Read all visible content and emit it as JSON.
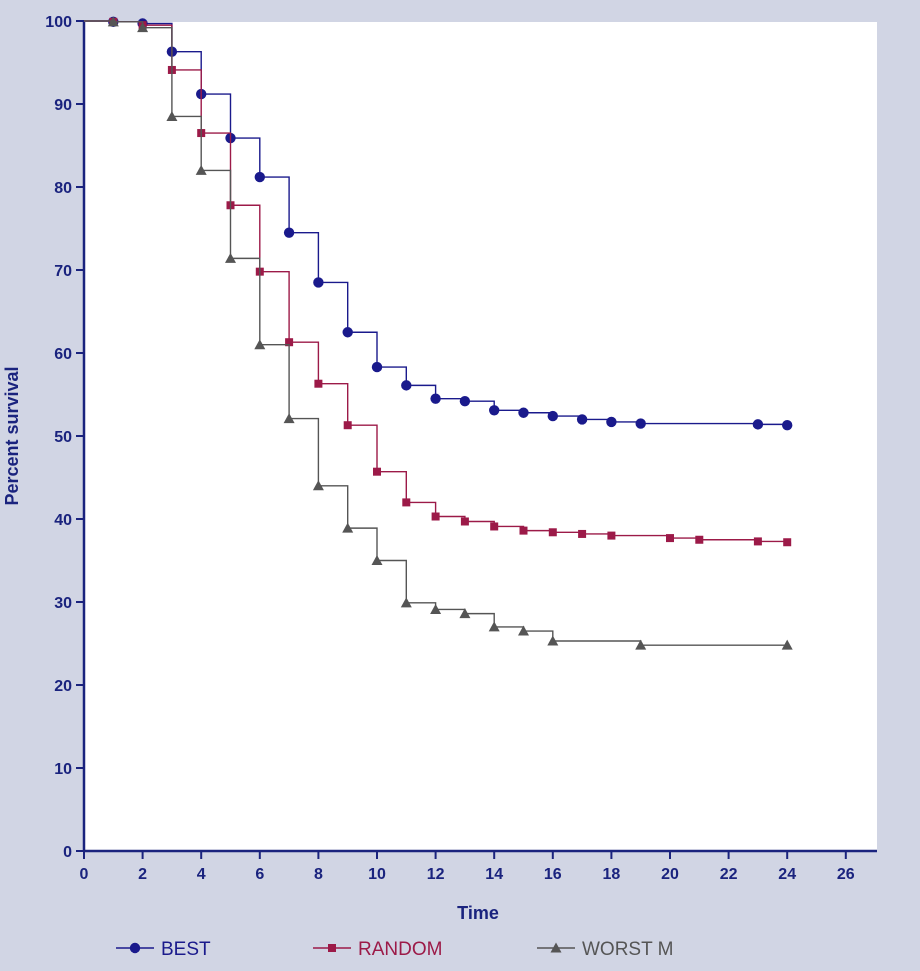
{
  "chart_data": {
    "type": "line",
    "step": true,
    "title": "",
    "xlabel": "Time",
    "ylabel": "Percent survival",
    "xlim": [
      0,
      26
    ],
    "ylim": [
      0,
      100
    ],
    "xticks": [
      0,
      2,
      4,
      6,
      8,
      10,
      12,
      14,
      16,
      18,
      20,
      22,
      24,
      26
    ],
    "yticks": [
      0,
      10,
      20,
      30,
      40,
      50,
      60,
      70,
      80,
      90,
      100
    ],
    "grid": false,
    "legend_position": "bottom",
    "series": [
      {
        "name": "BEST",
        "marker": "circle",
        "color": "#1a1a8c",
        "points": [
          [
            0,
            100
          ],
          [
            1,
            99.9
          ],
          [
            2,
            99.7
          ],
          [
            3,
            96.3
          ],
          [
            4,
            91.2
          ],
          [
            5,
            85.9
          ],
          [
            6,
            81.2
          ],
          [
            7,
            74.5
          ],
          [
            8,
            68.5
          ],
          [
            9,
            62.5
          ],
          [
            10,
            58.3
          ],
          [
            11,
            56.1
          ],
          [
            12,
            54.5
          ],
          [
            13,
            54.2
          ],
          [
            14,
            53.1
          ],
          [
            15,
            52.8
          ],
          [
            16,
            52.4
          ],
          [
            17,
            52.0
          ],
          [
            18,
            51.7
          ],
          [
            19,
            51.5
          ],
          [
            23,
            51.4
          ],
          [
            24,
            51.3
          ]
        ]
      },
      {
        "name": "RANDOM",
        "marker": "square",
        "color": "#9c1a48",
        "points": [
          [
            0,
            100
          ],
          [
            1,
            99.9
          ],
          [
            2,
            99.5
          ],
          [
            3,
            94.1
          ],
          [
            4,
            86.5
          ],
          [
            5,
            77.8
          ],
          [
            6,
            69.8
          ],
          [
            7,
            61.3
          ],
          [
            8,
            56.3
          ],
          [
            9,
            51.3
          ],
          [
            10,
            45.7
          ],
          [
            11,
            42.0
          ],
          [
            12,
            40.3
          ],
          [
            13,
            39.7
          ],
          [
            14,
            39.1
          ],
          [
            15,
            38.6
          ],
          [
            16,
            38.4
          ],
          [
            17,
            38.2
          ],
          [
            18,
            38.0
          ],
          [
            20,
            37.7
          ],
          [
            21,
            37.5
          ],
          [
            23,
            37.3
          ],
          [
            24,
            37.2
          ]
        ]
      },
      {
        "name": "WORST M",
        "marker": "triangle",
        "color": "#555555",
        "points": [
          [
            0,
            100
          ],
          [
            1,
            99.9
          ],
          [
            2,
            99.2
          ],
          [
            3,
            88.5
          ],
          [
            4,
            82.0
          ],
          [
            5,
            71.4
          ],
          [
            6,
            61.0
          ],
          [
            7,
            52.1
          ],
          [
            8,
            44.0
          ],
          [
            9,
            38.9
          ],
          [
            10,
            35.0
          ],
          [
            11,
            29.9
          ],
          [
            12,
            29.1
          ],
          [
            13,
            28.6
          ],
          [
            14,
            27.0
          ],
          [
            15,
            26.5
          ],
          [
            16,
            25.3
          ],
          [
            19,
            24.8
          ],
          [
            24,
            24.8
          ]
        ]
      }
    ]
  }
}
